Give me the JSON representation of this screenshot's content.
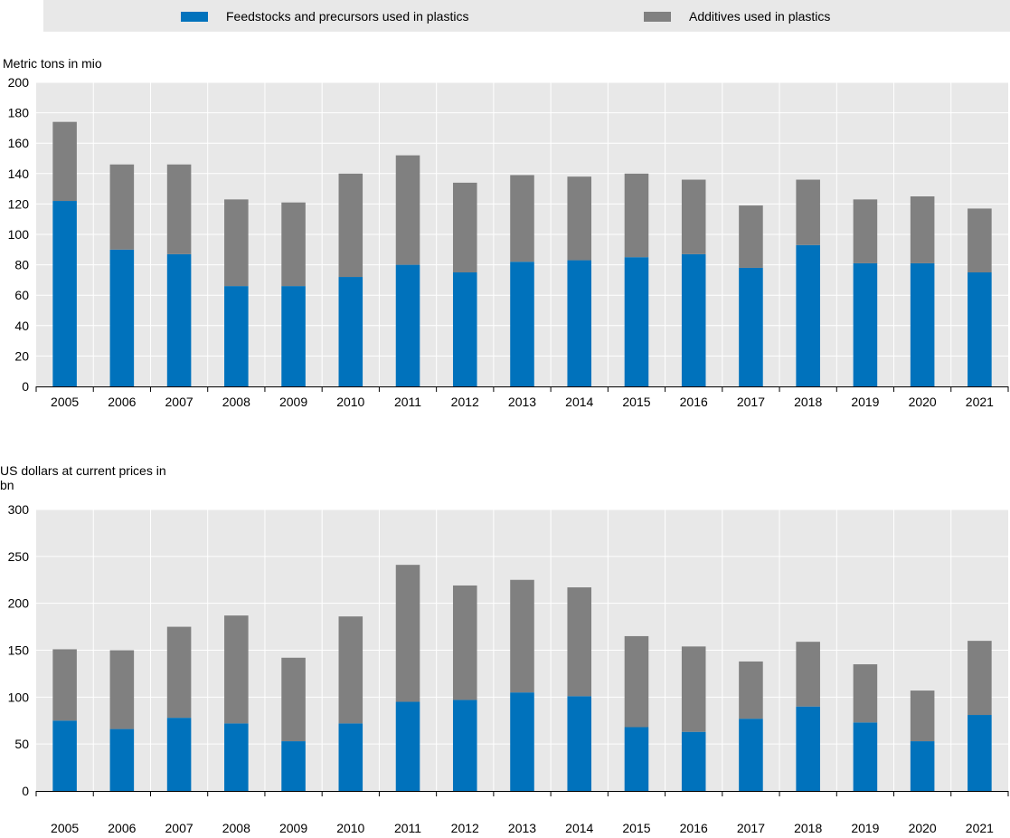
{
  "legend": {
    "items": [
      {
        "label": "Feedstocks and precursors used in plastics",
        "color": "#0072bc"
      },
      {
        "label": "Additives used in plastics",
        "color": "#808080"
      }
    ]
  },
  "chart_data": [
    {
      "type": "bar",
      "stacked": true,
      "ylabel": "Metric tons in mio",
      "ylim": [
        0,
        200
      ],
      "yticks": [
        0,
        20,
        40,
        60,
        80,
        100,
        120,
        140,
        160,
        180,
        200
      ],
      "categories": [
        "2005",
        "2006",
        "2007",
        "2008",
        "2009",
        "2010",
        "2011",
        "2012",
        "2013",
        "2014",
        "2015",
        "2016",
        "2017",
        "2018",
        "2019",
        "2020",
        "2021"
      ],
      "series": [
        {
          "name": "Feedstocks and precursors used in plastics",
          "color": "#0072bc",
          "values": [
            122,
            90,
            87,
            66,
            66,
            72,
            80,
            75,
            82,
            83,
            85,
            87,
            78,
            93,
            81,
            81,
            75
          ]
        },
        {
          "name": "Additives used in plastics",
          "color": "#808080",
          "values": [
            52,
            56,
            59,
            57,
            55,
            68,
            72,
            59,
            57,
            55,
            55,
            49,
            41,
            43,
            42,
            44,
            42
          ]
        }
      ],
      "grid": true,
      "background": "#e8e8e8"
    },
    {
      "type": "bar",
      "stacked": true,
      "ylabel": "US dollars at current prices in\n    bn",
      "ylim": [
        0,
        300
      ],
      "yticks": [
        0,
        50,
        100,
        150,
        200,
        250,
        300
      ],
      "categories": [
        "2005",
        "2006",
        "2007",
        "2008",
        "2009",
        "2010",
        "2011",
        "2012",
        "2013",
        "2014",
        "2015",
        "2016",
        "2017",
        "2018",
        "2019",
        "2020",
        "2021"
      ],
      "series": [
        {
          "name": "Feedstocks and precursors used in plastics",
          "color": "#0072bc",
          "values": [
            75,
            66,
            78,
            72,
            53,
            72,
            95,
            97,
            105,
            101,
            68,
            63,
            77,
            90,
            73,
            53,
            81
          ]
        },
        {
          "name": "Additives used in plastics",
          "color": "#808080",
          "values": [
            76,
            84,
            97,
            115,
            89,
            114,
            146,
            122,
            120,
            116,
            97,
            91,
            61,
            69,
            62,
            54,
            79
          ]
        }
      ],
      "grid": true,
      "background": "#e8e8e8"
    }
  ]
}
